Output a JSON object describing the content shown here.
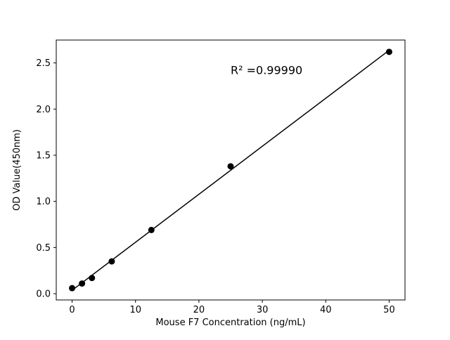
{
  "chart_data": {
    "type": "scatter",
    "title": "",
    "xlabel": "Mouse F7 Concentration (ng/mL)",
    "ylabel": "OD Value(450nm)",
    "x": [
      0,
      1.563,
      3.125,
      6.25,
      12.5,
      25,
      50
    ],
    "y": [
      0.06,
      0.11,
      0.17,
      0.35,
      0.69,
      1.38,
      2.62
    ],
    "xlim": [
      -2.5,
      52.5
    ],
    "ylim": [
      -0.068,
      2.748
    ],
    "xticks": [
      0,
      10,
      20,
      30,
      40,
      50
    ],
    "yticks": [
      0.0,
      0.5,
      1.0,
      1.5,
      2.0,
      2.5
    ],
    "grid": false,
    "legend_position": "none",
    "fit_line": {
      "slope": 0.052,
      "intercept": 0.037,
      "x_start": 0,
      "x_end": 50
    },
    "annotation": {
      "text": "R² =0.99990",
      "x": 25,
      "y": 2.38
    },
    "marker_color": "#000000",
    "line_color": "#000000",
    "background_color": "#ffffff"
  }
}
